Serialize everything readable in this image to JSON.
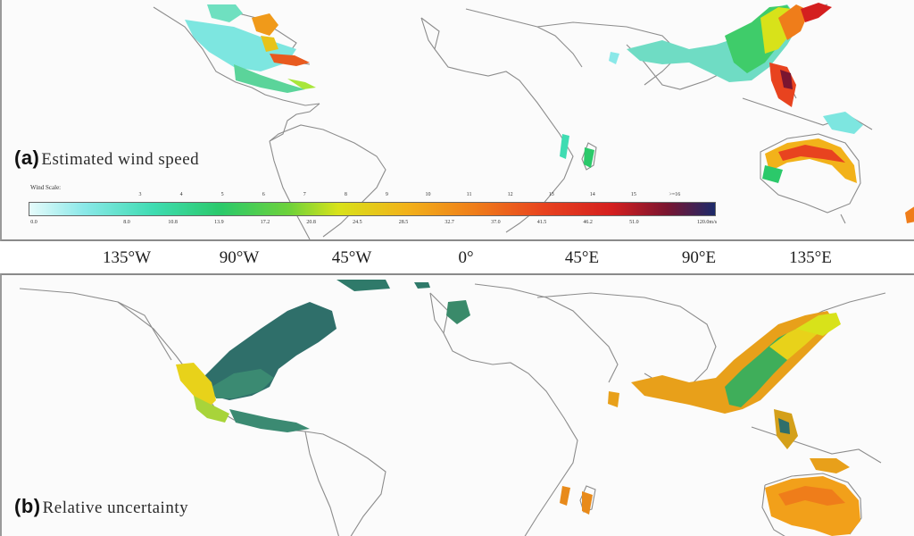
{
  "figure": {
    "panel_a": {
      "letter": "(a)",
      "title": "Estimated wind speed",
      "legend": {
        "scale_label": "Wind Scale:",
        "scale_ticks": [
          "3",
          "4",
          "5",
          "6",
          "7",
          "8",
          "9",
          "10",
          "11",
          "12",
          "13",
          "14",
          "15",
          ">=16"
        ],
        "value_ticks": [
          "0.0",
          "8.0",
          "10.8",
          "13.9",
          "17.2",
          "20.8",
          "24.5",
          "28.5",
          "32.7",
          "37.0",
          "41.5",
          "46.2",
          "51.0",
          "120.0m/s"
        ],
        "colors": [
          "#e6fbfb",
          "#8ae8e8",
          "#3fdcb2",
          "#2bc96a",
          "#6fd23a",
          "#d8e21a",
          "#f2b21a",
          "#ef7d1a",
          "#e8431f",
          "#d41f1f",
          "#7a1530",
          "#1c2a6a"
        ]
      }
    },
    "panel_b": {
      "letter": "(b)",
      "title": "Relative uncertainty"
    },
    "longitude_labels": [
      "135°W",
      "90°W",
      "45°W",
      "0°",
      "45°E",
      "90°E",
      "135°E"
    ]
  }
}
